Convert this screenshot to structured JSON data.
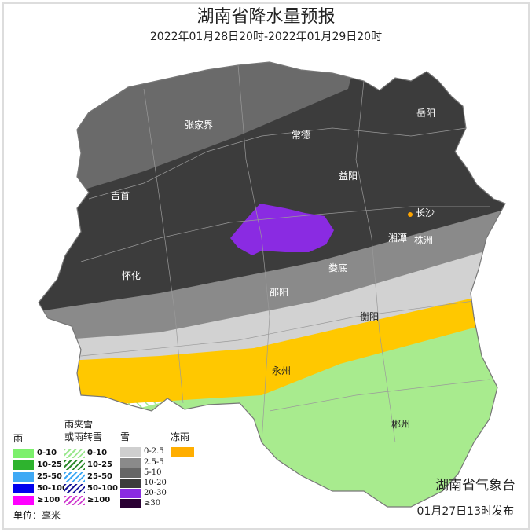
{
  "header": {
    "title": "湖南省降水量预报",
    "subtitle": "2022年01月28日20时-2022年01月29日20时"
  },
  "cities": [
    {
      "name": "张家界"
    },
    {
      "name": "常德"
    },
    {
      "name": "岳阳"
    },
    {
      "name": "吉首"
    },
    {
      "name": "益阳"
    },
    {
      "name": "长沙"
    },
    {
      "name": "湘潭"
    },
    {
      "name": "株洲"
    },
    {
      "name": "怀化"
    },
    {
      "name": "娄底"
    },
    {
      "name": "邵阳"
    },
    {
      "name": "衡阳"
    },
    {
      "name": "永州"
    },
    {
      "name": "郴州"
    }
  ],
  "legend": {
    "rain": {
      "title": "雨",
      "items": [
        {
          "label": "0-10",
          "color": "#7cf06c"
        },
        {
          "label": "10-25",
          "color": "#2eb32e"
        },
        {
          "label": "25-50",
          "color": "#3fa9f5"
        },
        {
          "label": "50-100",
          "color": "#0000ee"
        },
        {
          "label": "≥100",
          "color": "#ff00ff"
        }
      ]
    },
    "sleet": {
      "title_line1": "雨夹雪",
      "title_line2": "或雨转雪",
      "items": [
        {
          "label": "0-10",
          "color": "#9be88f"
        },
        {
          "label": "10-25",
          "color": "#2e8b2e"
        },
        {
          "label": "25-50",
          "color": "#3fa9f5"
        },
        {
          "label": "50-100",
          "color": "#1a1a9a"
        },
        {
          "label": "≥100",
          "color": "#d040d0"
        }
      ]
    },
    "snow": {
      "title": "雪",
      "items": [
        {
          "label": "0-2.5",
          "color": "#cfcfcf"
        },
        {
          "label": "2.5-5",
          "color": "#8a8a8a"
        },
        {
          "label": "5-10",
          "color": "#666666"
        },
        {
          "label": "10-20",
          "color": "#3c3c3c"
        },
        {
          "label": "20-30",
          "color": "#8a2be2"
        },
        {
          "label": "≥30",
          "color": "#2a0033"
        }
      ]
    },
    "freezing_rain": {
      "title": "冻雨",
      "color": "#ffc000"
    },
    "unit": "单位：毫米"
  },
  "footer": {
    "issuer": "湖南省气象台",
    "issued": "01月27日13时发布"
  }
}
